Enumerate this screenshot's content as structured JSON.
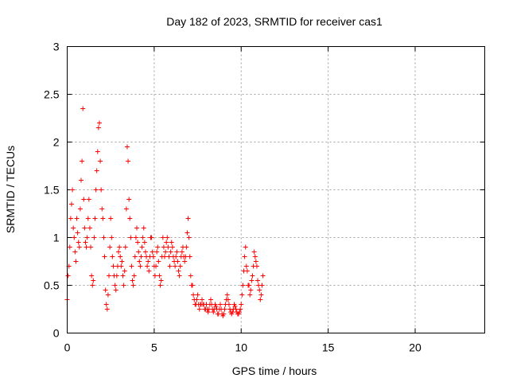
{
  "chart_data": {
    "type": "scatter",
    "title": "Day 182 of 2023, SRMTID for receiver cas1",
    "xlabel": "GPS time / hours",
    "ylabel": "SRMTID / TECUs",
    "xlim": [
      0,
      24
    ],
    "ylim": [
      0,
      3
    ],
    "x_ticks": [
      0,
      5,
      10,
      15,
      20
    ],
    "x_tick_labels": [
      "0",
      "5",
      "10",
      "15",
      "20"
    ],
    "y_ticks": [
      0,
      0.5,
      1,
      1.5,
      2,
      2.5,
      3
    ],
    "y_tick_labels": [
      "0",
      "0.5",
      "1",
      "1.5",
      "2",
      "2.5",
      "3"
    ],
    "grid": true,
    "marker": "+",
    "color": "#ff0000",
    "series": [
      {
        "name": "SRMTID",
        "sampling_interval_hours": 0.05,
        "x_start": 0,
        "y": [
          0.35,
          0.6,
          0.7,
          0.9,
          1.2,
          1.35,
          1.5,
          1.1,
          1.0,
          0.85,
          0.75,
          1.2,
          1.05,
          0.95,
          0.9,
          1.3,
          1.6,
          1.8,
          2.35,
          1.4,
          1.1,
          0.95,
          0.9,
          1.0,
          1.2,
          1.4,
          1.1,
          0.9,
          0.6,
          0.5,
          0.55,
          1.0,
          1.2,
          1.5,
          1.7,
          1.9,
          2.15,
          2.2,
          1.8,
          1.5,
          1.3,
          1.2,
          1.0,
          0.8,
          0.45,
          0.3,
          0.25,
          0.4,
          0.6,
          0.9,
          1.2,
          1.0,
          0.8,
          0.7,
          0.6,
          0.5,
          0.45,
          0.6,
          0.7,
          0.85,
          0.9,
          0.8,
          0.7,
          0.75,
          0.6,
          0.5,
          0.65,
          0.9,
          1.3,
          1.95,
          1.8,
          1.4,
          1.2,
          1.0,
          0.7,
          0.55,
          0.5,
          0.6,
          0.8,
          1.0,
          1.1,
          0.95,
          0.85,
          0.75,
          0.7,
          0.8,
          0.9,
          1.0,
          1.1,
          0.95,
          0.85,
          0.8,
          0.7,
          0.75,
          0.65,
          0.8,
          1.0,
          1.0,
          0.85,
          0.8,
          0.7,
          0.6,
          0.7,
          0.85,
          0.9,
          0.75,
          0.6,
          0.5,
          0.55,
          0.8,
          1.0,
          0.9,
          0.8,
          0.85,
          0.95,
          1.0,
          0.9,
          0.8,
          0.7,
          0.85,
          0.95,
          0.9,
          0.8,
          0.75,
          0.7,
          0.8,
          0.85,
          0.75,
          0.65,
          0.6,
          0.7,
          0.8,
          0.85,
          0.9,
          0.8,
          0.75,
          0.8,
          0.9,
          1.05,
          1.2,
          1.0,
          0.8,
          0.6,
          0.5,
          0.5,
          0.4,
          0.35,
          0.3,
          0.3,
          0.35,
          0.4,
          0.3,
          0.25,
          0.3,
          0.3,
          0.35,
          0.3,
          0.3,
          0.25,
          0.25,
          0.3,
          0.25,
          0.22,
          0.25,
          0.3,
          0.35,
          0.3,
          0.25,
          0.22,
          0.25,
          0.3,
          0.28,
          0.25,
          0.2,
          0.2,
          0.25,
          0.3,
          0.25,
          0.2,
          0.18,
          0.2,
          0.25,
          0.3,
          0.35,
          0.4,
          0.35,
          0.3,
          0.25,
          0.22,
          0.2,
          0.22,
          0.25,
          0.3,
          0.28,
          0.25,
          0.22,
          0.2,
          0.2,
          0.22,
          0.25,
          0.3,
          0.4,
          0.5,
          0.65,
          0.8,
          0.9,
          0.7,
          0.65,
          0.5,
          0.5,
          0.4,
          0.45,
          0.55,
          0.6,
          0.7,
          0.85,
          0.8,
          0.75,
          0.7,
          0.55,
          0.5,
          0.45,
          0.35,
          0.4,
          0.5,
          0.6
        ]
      }
    ]
  }
}
